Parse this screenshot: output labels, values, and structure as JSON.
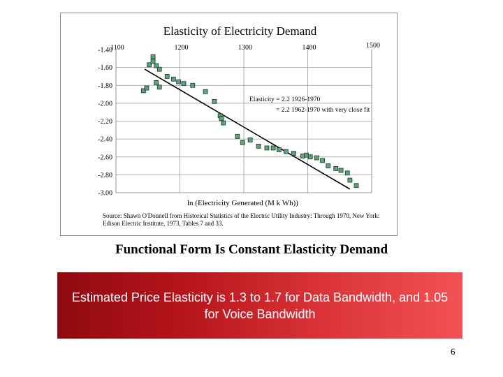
{
  "slide": {
    "heading": "Functional Form Is Constant Elasticity Demand",
    "banner_text": "Estimated Price Elasticity is 1.3 to 1.7 for Data Bandwidth, and 1.05 for Voice Bandwidth",
    "page_number": "6"
  },
  "colors": {
    "marker_fill": "#5ea17b",
    "banner_dark": "#8e0a10",
    "banner_light": "#f35155"
  },
  "chart_data": {
    "type": "scatter",
    "title": "Elasticity of Electricity Demand",
    "xlabel": "ln (Electricity Generated (M k Wh))",
    "ylabel": "",
    "x_ticks": [
      "1100",
      "1200",
      "1300",
      "1400",
      "1500"
    ],
    "y_ticks": [
      "-1.40",
      "-1.60",
      "-1.80",
      "-2.00",
      "-2.20",
      "-2.40",
      "-2.60",
      "-2.80",
      "-3.00"
    ],
    "xlim": [
      1100,
      1500
    ],
    "ylim": [
      -3.0,
      -1.4
    ],
    "grid": true,
    "annotations": [
      "Elasticity = 2.2 1926-1970",
      "= 2.2 1962-1970 with very close fit"
    ],
    "source": "Source: Shawn O'Donnell from Historical Statistics of the Electric Utility Industry: Through 1970, New York: Edison Electric Institute, 1973, Tables 7 and 33.",
    "series": [
      {
        "values": [
          {
            "x": 1143,
            "y": -1.86
          },
          {
            "x": 1148,
            "y": -1.83
          },
          {
            "x": 1152,
            "y": -1.57
          },
          {
            "x": 1158,
            "y": -1.53
          },
          {
            "x": 1163,
            "y": -1.58
          },
          {
            "x": 1158,
            "y": -1.48
          },
          {
            "x": 1168,
            "y": -1.62
          },
          {
            "x": 1163,
            "y": -1.77
          },
          {
            "x": 1168,
            "y": -1.82
          },
          {
            "x": 1180,
            "y": -1.7
          },
          {
            "x": 1190,
            "y": -1.73
          },
          {
            "x": 1198,
            "y": -1.76
          },
          {
            "x": 1206,
            "y": -1.78
          },
          {
            "x": 1220,
            "y": -1.8
          },
          {
            "x": 1240,
            "y": -1.87
          },
          {
            "x": 1254,
            "y": -1.98
          },
          {
            "x": 1263,
            "y": -2.14
          },
          {
            "x": 1265,
            "y": -2.17
          },
          {
            "x": 1268,
            "y": -2.22
          },
          {
            "x": 1290,
            "y": -2.37
          },
          {
            "x": 1298,
            "y": -2.44
          },
          {
            "x": 1310,
            "y": -2.41
          },
          {
            "x": 1323,
            "y": -2.48
          },
          {
            "x": 1336,
            "y": -2.5
          },
          {
            "x": 1346,
            "y": -2.5
          },
          {
            "x": 1355,
            "y": -2.52
          },
          {
            "x": 1366,
            "y": -2.54
          },
          {
            "x": 1378,
            "y": -2.56
          },
          {
            "x": 1392,
            "y": -2.59
          },
          {
            "x": 1398,
            "y": -2.58
          },
          {
            "x": 1404,
            "y": -2.6
          },
          {
            "x": 1414,
            "y": -2.61
          },
          {
            "x": 1423,
            "y": -2.64
          },
          {
            "x": 1432,
            "y": -2.7
          },
          {
            "x": 1444,
            "y": -2.73
          },
          {
            "x": 1452,
            "y": -2.75
          },
          {
            "x": 1462,
            "y": -2.78
          },
          {
            "x": 1466,
            "y": -2.86
          },
          {
            "x": 1476,
            "y": -2.92
          }
        ]
      }
    ],
    "fit_line": [
      {
        "x": 1145,
        "y": -1.62
      },
      {
        "x": 1466,
        "y": -2.96
      }
    ]
  }
}
